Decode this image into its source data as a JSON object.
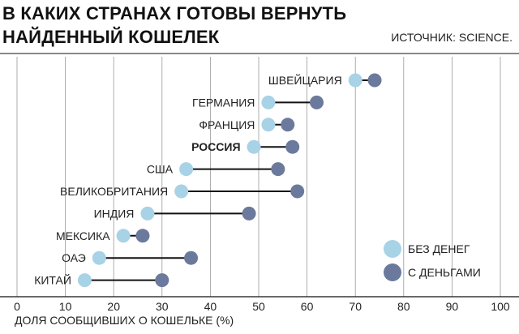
{
  "title_lines": [
    "В КАКИХ СТРАНАХ ГОТОВЫ ВЕРНУТЬ",
    "НАЙДЕННЫЙ КОШЕЛЕК"
  ],
  "source": "ИСТОЧНИК: SCIENCE.",
  "colors": {
    "no_money": "#a8d2e6",
    "with_money": "#6b7a9c",
    "connector": "#111111",
    "grid": "#999999"
  },
  "chart_data": {
    "type": "dumbbell",
    "title": "В КАКИХ СТРАНАХ ГОТОВЫ ВЕРНУТЬ НАЙДЕННЫЙ КОШЕЛЕК",
    "xlabel": "ДОЛЯ СООБЩИВШИХ О КОШЕЛЬКЕ (%)",
    "ylabel": "",
    "xlim": [
      0,
      100
    ],
    "xticks": [
      0,
      10,
      20,
      30,
      40,
      50,
      60,
      70,
      80,
      90,
      100
    ],
    "grid": true,
    "legend_position": "bottom-right",
    "categories": [
      "ШВЕЙЦАРИЯ",
      "ГЕРМАНИЯ",
      "ФРАНЦИЯ",
      "РОССИЯ",
      "США",
      "ВЕЛИКОБРИТАНИЯ",
      "ИНДИЯ",
      "МЕКСИКА",
      "ОАЭ",
      "КИТАЙ"
    ],
    "highlight": "РОССИЯ",
    "series": [
      {
        "name": "БЕЗ ДЕНЕГ",
        "values": [
          70,
          52,
          52,
          49,
          35,
          34,
          27,
          22,
          17,
          14
        ]
      },
      {
        "name": "С ДЕНЬГАМИ",
        "values": [
          74,
          62,
          56,
          57,
          54,
          58,
          48,
          26,
          36,
          30
        ]
      }
    ]
  }
}
